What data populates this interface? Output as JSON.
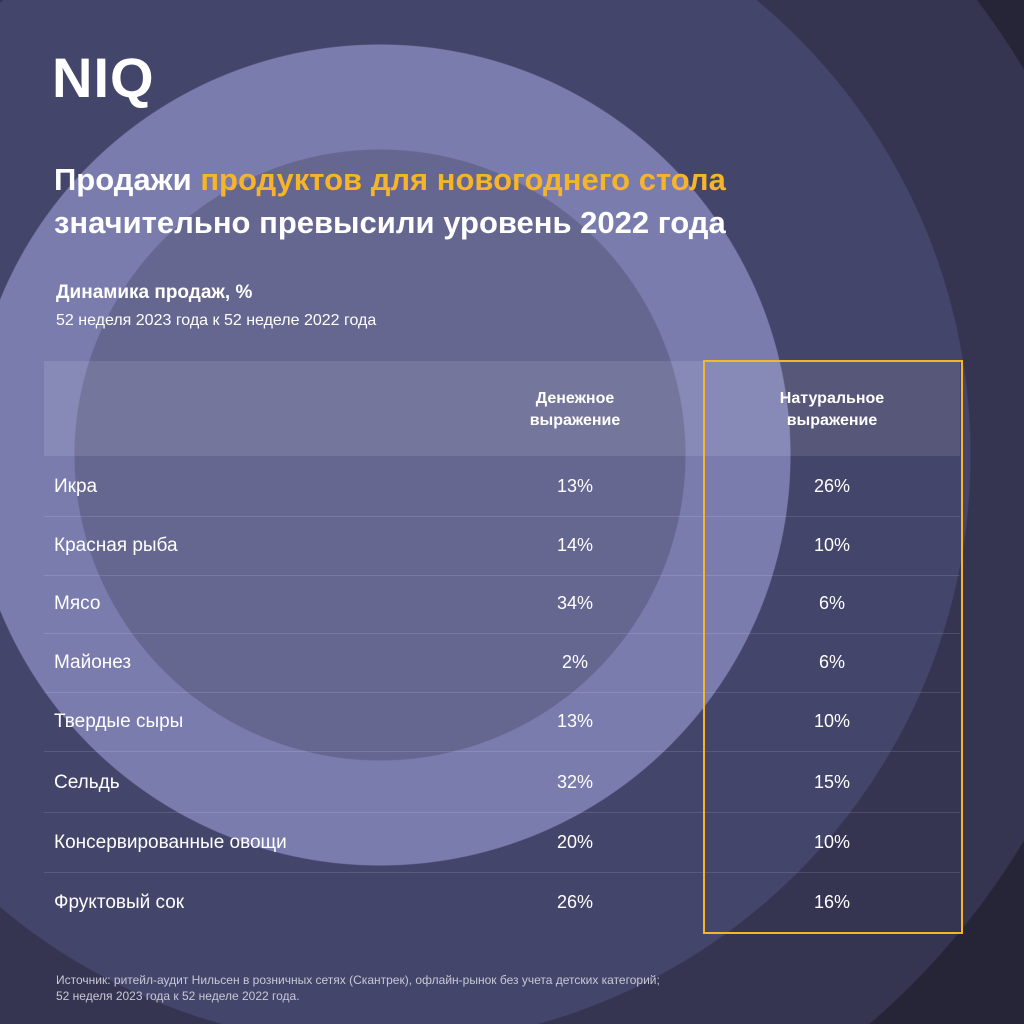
{
  "logo": "NIQ",
  "title": {
    "part1": "Продажи ",
    "highlight": "продуктов для новогоднего стола",
    "line2": "значительно превысили уровень 2022 года"
  },
  "subtitle": {
    "heading": "Динамика продаж, %",
    "period": "52 неделя 2023 года к 52 неделе 2022 года"
  },
  "colors": {
    "accent": "#f5b429",
    "background": "#252537"
  },
  "table": {
    "headers": {
      "col1_line1": "Денежное",
      "col1_line2": "выражение",
      "col2_line1": "Натуральное",
      "col2_line2": "выражение"
    },
    "rows": [
      {
        "name": "Икра",
        "money": "13%",
        "volume": "26%"
      },
      {
        "name": "Красная рыба",
        "money": "14%",
        "volume": "10%"
      },
      {
        "name": "Мясо",
        "money": "34%",
        "volume": "6%"
      },
      {
        "name": "Майонез",
        "money": "2%",
        "volume": "6%"
      },
      {
        "name": "Твердые сыры",
        "money": "13%",
        "volume": "10%"
      },
      {
        "name": "Сельдь",
        "money": "32%",
        "volume": "15%"
      },
      {
        "name": "Консервированные овощи",
        "money": "20%",
        "volume": "10%"
      },
      {
        "name": "Фруктовый сок",
        "money": "26%",
        "volume": "16%"
      }
    ]
  },
  "footer": {
    "line1": "Источник: ритейл-аудит Нильсен в розничных сетях (Скантрек), офлайн-рынок без учета детских категорий;",
    "line2": "52 неделя 2023 года к 52 неделе 2022 года."
  }
}
